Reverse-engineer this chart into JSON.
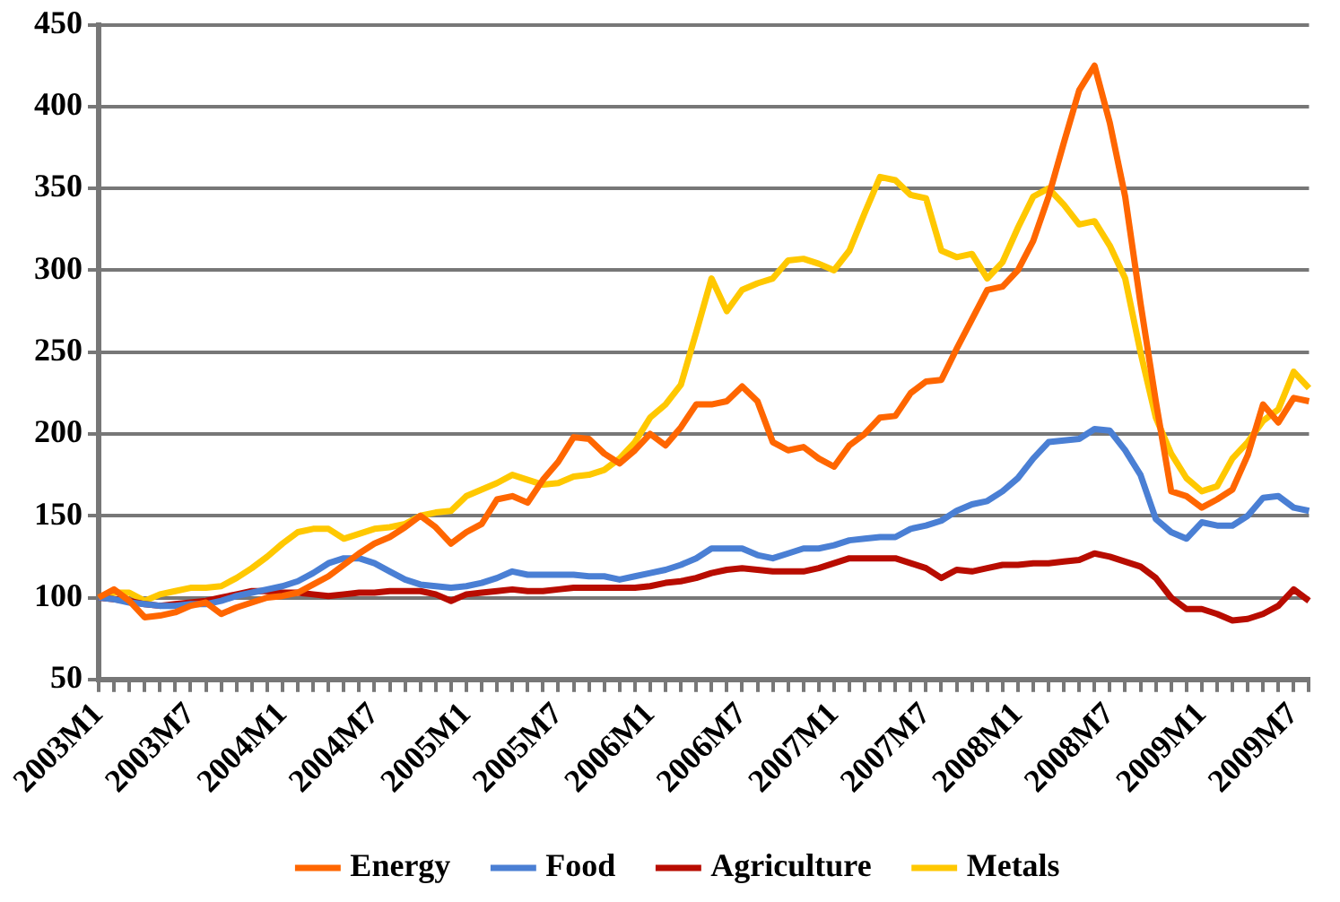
{
  "chart_data": {
    "type": "line",
    "categories": [
      "2003M1",
      null,
      null,
      null,
      null,
      null,
      "2003M7",
      null,
      null,
      null,
      null,
      null,
      "2004M1",
      null,
      null,
      null,
      null,
      null,
      "2004M7",
      null,
      null,
      null,
      null,
      null,
      "2005M1",
      null,
      null,
      null,
      null,
      null,
      "2005M7",
      null,
      null,
      null,
      null,
      null,
      "2006M1",
      null,
      null,
      null,
      null,
      null,
      "2006M7",
      null,
      null,
      null,
      null,
      null,
      "2007M1",
      null,
      null,
      null,
      null,
      null,
      "2007M7",
      null,
      null,
      null,
      null,
      null,
      "2008M1",
      null,
      null,
      null,
      null,
      null,
      "2008M7",
      null,
      null,
      null,
      null,
      null,
      "2009M1",
      null,
      null,
      null,
      null,
      null,
      "2009M7",
      null
    ],
    "series": [
      {
        "name": "Energy",
        "color": "#ff6600",
        "values": [
          100,
          105,
          98,
          88,
          89,
          91,
          95,
          97,
          90,
          94,
          97,
          100,
          101,
          103,
          108,
          113,
          120,
          127,
          133,
          137,
          143,
          150,
          143,
          133,
          140,
          145,
          160,
          162,
          158,
          172,
          183,
          198,
          197,
          188,
          182,
          190,
          200,
          193,
          204,
          218,
          218,
          220,
          229,
          220,
          195,
          190,
          192,
          185,
          180,
          193,
          200,
          210,
          211,
          225,
          232,
          233,
          252,
          270,
          288,
          290,
          300,
          318,
          345,
          378,
          410,
          425,
          390,
          345,
          280,
          220,
          165,
          162,
          155,
          160,
          166,
          187,
          218,
          207,
          222,
          220
        ]
      },
      {
        "name": "Food",
        "color": "#4a7fd4",
        "values": [
          100,
          99,
          97,
          96,
          95,
          95,
          96,
          96,
          98,
          101,
          103,
          105,
          107,
          110,
          115,
          121,
          124,
          124,
          121,
          116,
          111,
          108,
          107,
          106,
          107,
          109,
          112,
          116,
          114,
          114,
          114,
          114,
          113,
          113,
          111,
          113,
          115,
          117,
          120,
          124,
          130,
          130,
          130,
          126,
          124,
          127,
          130,
          130,
          132,
          135,
          136,
          137,
          137,
          142,
          144,
          147,
          153,
          157,
          159,
          165,
          173,
          185,
          195,
          196,
          197,
          203,
          202,
          190,
          175,
          148,
          140,
          136,
          146,
          144,
          144,
          150,
          161,
          162,
          155,
          153
        ]
      },
      {
        "name": "Agriculture",
        "color": "#b80c00",
        "values": [
          100,
          99,
          98,
          96,
          95,
          96,
          97,
          98,
          100,
          102,
          104,
          104,
          103,
          103,
          102,
          101,
          102,
          103,
          103,
          104,
          104,
          104,
          102,
          98,
          102,
          103,
          104,
          105,
          104,
          104,
          105,
          106,
          106,
          106,
          106,
          106,
          107,
          109,
          110,
          112,
          115,
          117,
          118,
          117,
          116,
          116,
          116,
          118,
          121,
          124,
          124,
          124,
          124,
          121,
          118,
          112,
          117,
          116,
          118,
          120,
          120,
          121,
          121,
          122,
          123,
          127,
          125,
          122,
          119,
          112,
          100,
          93,
          93,
          90,
          86,
          87,
          90,
          95,
          105,
          98
        ]
      },
      {
        "name": "Metals",
        "color": "#ffc800",
        "values": [
          100,
          103,
          103,
          98,
          102,
          104,
          106,
          106,
          107,
          112,
          118,
          125,
          133,
          140,
          142,
          142,
          136,
          139,
          142,
          143,
          145,
          150,
          152,
          153,
          162,
          166,
          170,
          175,
          172,
          169,
          170,
          174,
          175,
          178,
          185,
          195,
          210,
          218,
          230,
          262,
          295,
          275,
          288,
          292,
          295,
          306,
          307,
          304,
          300,
          312,
          335,
          357,
          355,
          346,
          344,
          312,
          308,
          310,
          295,
          305,
          326,
          345,
          350,
          340,
          328,
          330,
          315,
          295,
          250,
          210,
          188,
          173,
          165,
          168,
          185,
          195,
          208,
          215,
          238,
          228
        ]
      }
    ],
    "ylim": [
      50,
      450
    ],
    "yticks": [
      50,
      100,
      150,
      200,
      250,
      300,
      350,
      400,
      450
    ],
    "grid": "y",
    "legend": "bottom",
    "marker": "none",
    "line_style": "solid"
  }
}
